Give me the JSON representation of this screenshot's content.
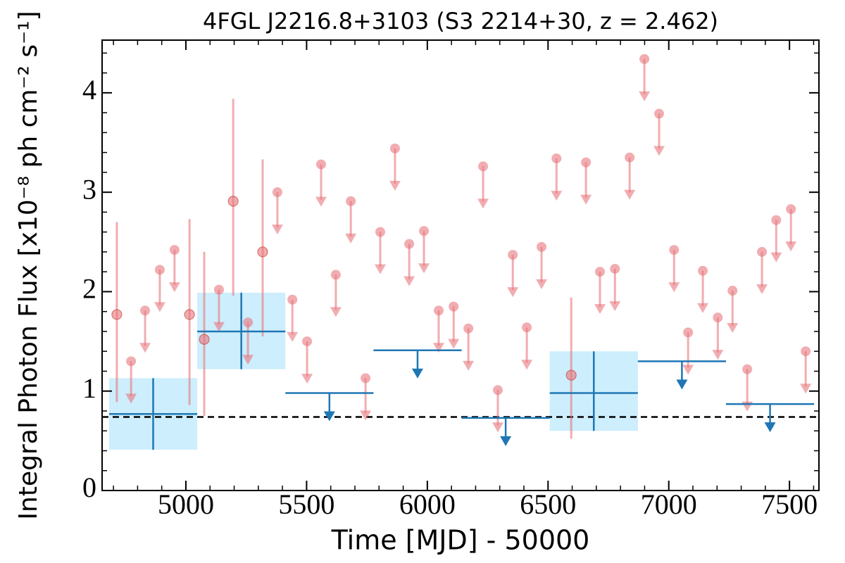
{
  "chart_data": {
    "type": "scatter",
    "title": "4FGL J2216.8+3103 (S3 2214+30, z = 2.462)",
    "xlabel": "Time [MJD] - 50000",
    "ylabel": "Integral Photon Flux [x10⁻⁸ ph cm⁻² s⁻¹]",
    "xlim": [
      4653,
      7622
    ],
    "ylim": [
      0,
      4.53
    ],
    "xticks": [
      5000,
      5500,
      6000,
      6500,
      7000,
      7500
    ],
    "yticks": [
      0,
      1,
      2,
      3,
      4
    ],
    "xminorticks": [
      4700,
      4800,
      4900,
      5100,
      5200,
      5300,
      5400,
      5600,
      5700,
      5800,
      5900,
      6100,
      6200,
      6300,
      6400,
      6600,
      6700,
      6800,
      6900,
      7100,
      7200,
      7300,
      7400,
      7600
    ],
    "yminorticks": [
      0.2,
      0.4,
      0.6,
      0.8,
      1.2,
      1.4,
      1.6,
      1.8,
      2.2,
      2.4,
      2.6,
      2.8,
      3.2,
      3.4,
      3.6,
      3.8,
      4.2,
      4.4
    ],
    "reference_level": 0.74,
    "detections": {
      "color": "#e8777d",
      "x": [
        4714,
        5015,
        5076,
        5196,
        5318,
        6596
      ],
      "values": [
        1.77,
        1.77,
        1.52,
        2.91,
        2.4,
        1.16
      ],
      "yerr_minus": [
        0.88,
        0.91,
        0.77,
        0.95,
        0.85,
        0.64
      ],
      "yerr_plus": [
        0.93,
        0.96,
        0.88,
        1.03,
        0.93,
        0.78
      ]
    },
    "upper_limits": {
      "color": "#e8777d",
      "x": [
        4773,
        4831,
        4892,
        4953,
        5137,
        5257,
        5379,
        5441,
        5502,
        5560,
        5621,
        5683,
        5744,
        5805,
        5866,
        5925,
        5986,
        6047,
        6109,
        6170,
        6231,
        6292,
        6354,
        6412,
        6473,
        6535,
        6657,
        6715,
        6777,
        6838,
        6899,
        6960,
        7022,
        7080,
        7141,
        7203,
        7264,
        7325,
        7386,
        7445,
        7506,
        7567
      ],
      "values": [
        1.3,
        1.81,
        2.22,
        2.42,
        2.02,
        1.69,
        3.0,
        1.92,
        1.5,
        3.28,
        2.17,
        2.91,
        1.13,
        2.6,
        3.44,
        2.48,
        2.61,
        1.81,
        1.85,
        1.63,
        3.26,
        1.01,
        2.37,
        1.64,
        2.45,
        3.34,
        3.3,
        2.2,
        2.23,
        3.35,
        4.34,
        3.79,
        2.42,
        1.59,
        2.21,
        1.74,
        2.01,
        1.22,
        2.4,
        2.72,
        2.83,
        1.4
      ]
    },
    "binned_detections": {
      "color": "#1f77b4",
      "box_color": "#cdeefc",
      "x_start": [
        4682,
        5047,
        6507
      ],
      "x_end": [
        5047,
        5412,
        6872
      ],
      "values": [
        0.77,
        1.6,
        0.98
      ],
      "yerr_minus": [
        0.36,
        0.38,
        0.38
      ],
      "yerr_plus": [
        0.36,
        0.39,
        0.42
      ]
    },
    "binned_upper_limits": {
      "color": "#1f77b4",
      "x_start": [
        5412,
        5777,
        6142,
        6872,
        7237
      ],
      "x_end": [
        5777,
        6142,
        6507,
        7237,
        7602
      ],
      "values": [
        0.98,
        1.41,
        0.73,
        1.3,
        0.87
      ]
    }
  }
}
